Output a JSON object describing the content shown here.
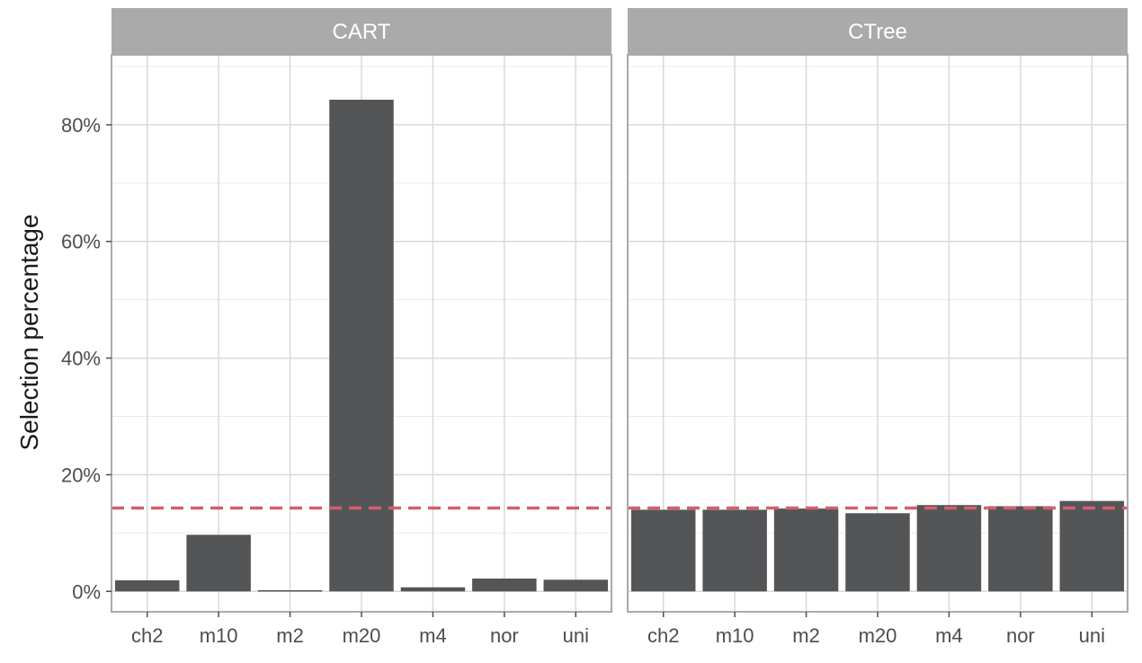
{
  "chart_data": {
    "type": "bar",
    "ylabel": "Selection percentage",
    "xlabel": "",
    "ylim": [
      -0.035,
      0.92
    ],
    "y_ticks": [
      0,
      0.2,
      0.4,
      0.6,
      0.8
    ],
    "y_tick_labels": [
      "0%",
      "20%",
      "40%",
      "60%",
      "80%"
    ],
    "categories": [
      "ch2",
      "m10",
      "m2",
      "m20",
      "m4",
      "nor",
      "uni"
    ],
    "reference_line": {
      "y": 0.143,
      "style": "dashed",
      "color": "#d55e6f"
    },
    "bar_color": "#545557",
    "grid": true,
    "panels": [
      {
        "title": "CART",
        "values": [
          0.019,
          0.097,
          0.002,
          0.843,
          0.007,
          0.022,
          0.02
        ]
      },
      {
        "title": "CTree",
        "values": [
          0.14,
          0.14,
          0.142,
          0.134,
          0.148,
          0.146,
          0.155
        ]
      }
    ]
  }
}
